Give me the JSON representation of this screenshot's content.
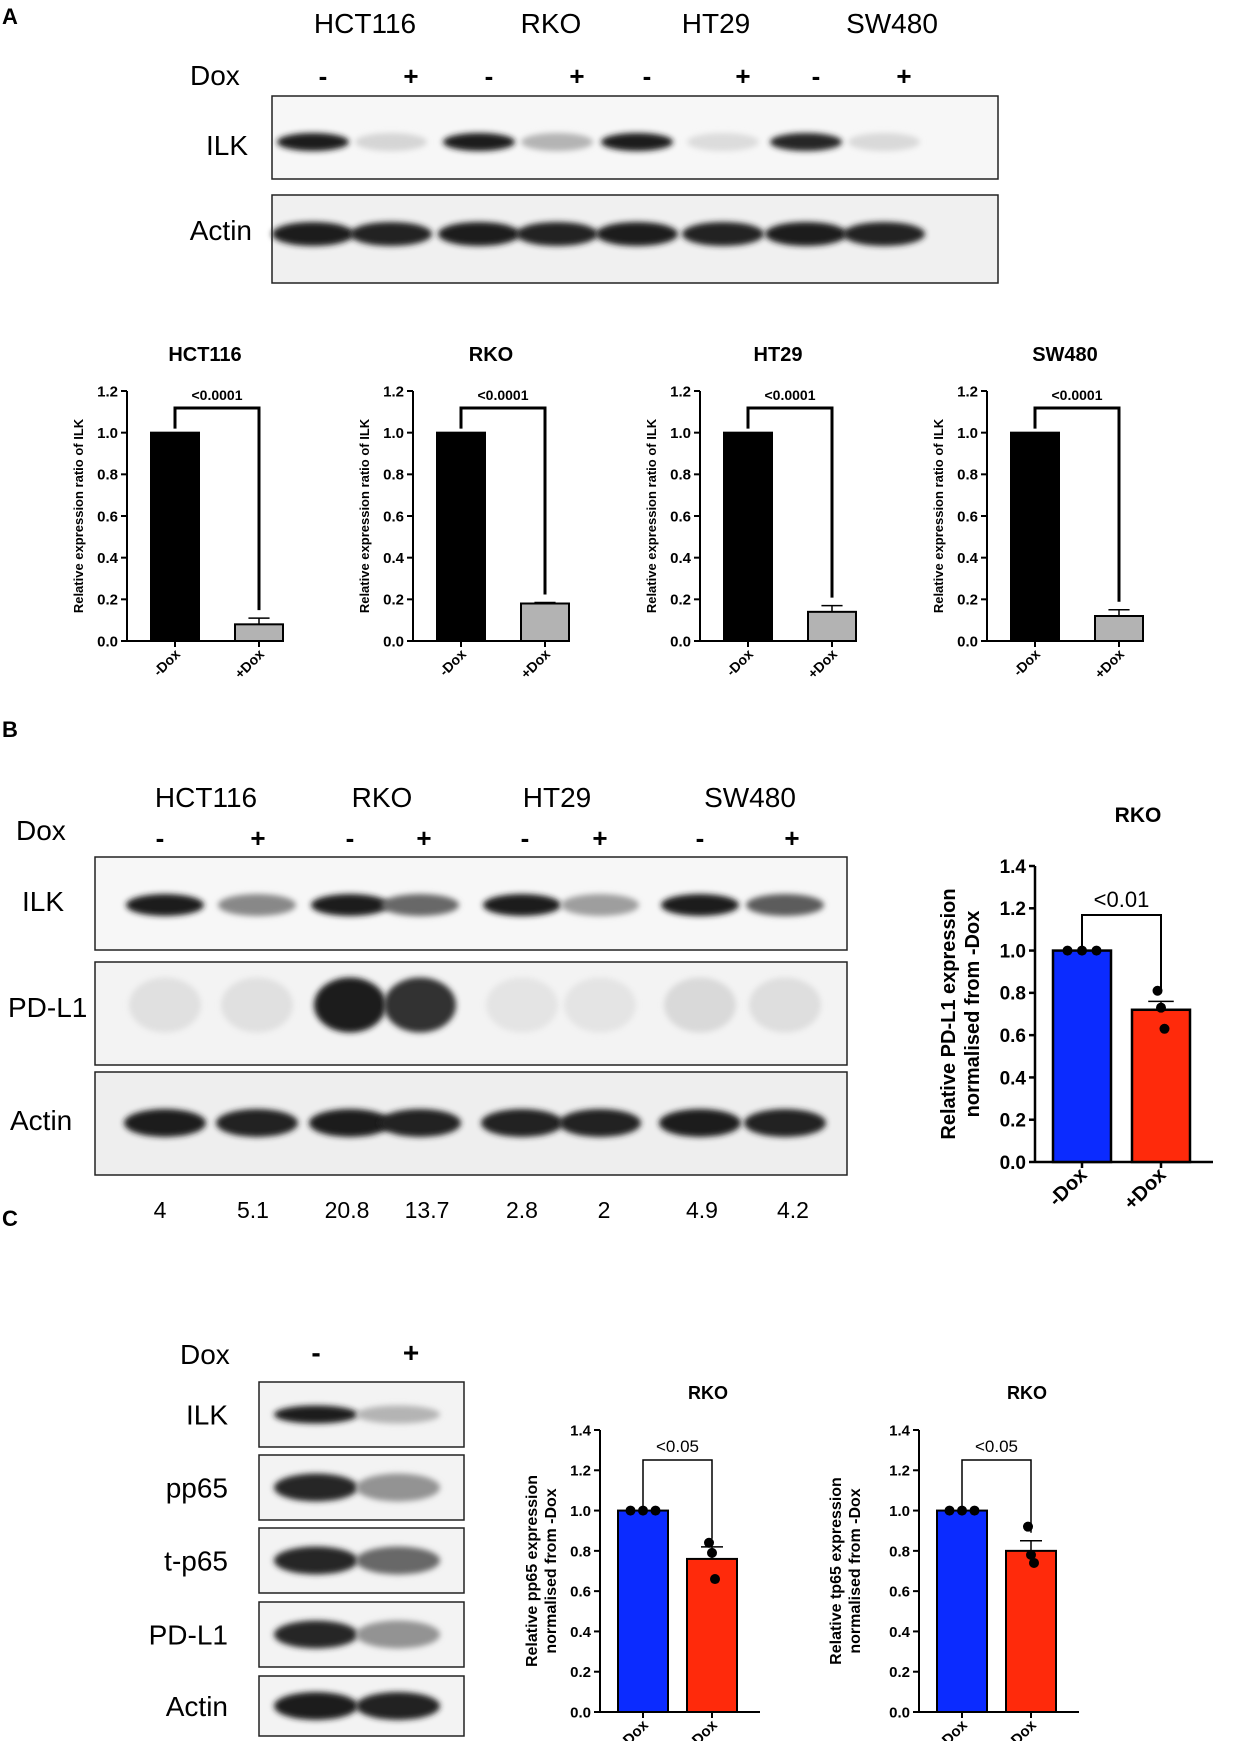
{
  "panels": {
    "a": {
      "letter": "A",
      "blot": {
        "dox_label": "Dox",
        "cell_lines": [
          "HCT116",
          "RKO",
          "HT29",
          "SW480"
        ],
        "treatments": [
          "-",
          "+",
          "-",
          "+",
          "-",
          "+",
          "-",
          "+"
        ],
        "rows": [
          "ILK",
          "Actin"
        ],
        "band_intensity": {
          "ILK": [
            0.95,
            0.1,
            0.95,
            0.25,
            0.95,
            0.07,
            0.9,
            0.08
          ],
          "Actin": [
            0.95,
            0.92,
            0.95,
            0.92,
            0.95,
            0.92,
            0.95,
            0.92
          ]
        }
      },
      "charts": [
        {
          "type": "bar",
          "title": "HCT116",
          "ylabel": "Relative expression ratio of ILK",
          "categories": [
            "-Dox",
            "+Dox"
          ],
          "values": [
            1.0,
            0.08
          ],
          "errors": [
            0,
            0.03
          ],
          "ylim": [
            0,
            1.2
          ],
          "yticks": [
            "0.0",
            "0.2",
            "0.4",
            "0.6",
            "0.8",
            "1.0",
            "1.2"
          ],
          "significance": "<0.0001",
          "colors": [
            "#000000",
            "#b3b3b3"
          ]
        },
        {
          "type": "bar",
          "title": "RKO",
          "ylabel": "Relative expression ratio of ILK",
          "categories": [
            "-Dox",
            "+Dox"
          ],
          "values": [
            1.0,
            0.18
          ],
          "errors": [
            0,
            0.005
          ],
          "ylim": [
            0,
            1.2
          ],
          "yticks": [
            "0.0",
            "0.2",
            "0.4",
            "0.6",
            "0.8",
            "1.0",
            "1.2"
          ],
          "significance": "<0.0001",
          "colors": [
            "#000000",
            "#b3b3b3"
          ]
        },
        {
          "type": "bar",
          "title": "HT29",
          "ylabel": "Relative expression ratio of ILK",
          "categories": [
            "-Dox",
            "+Dox"
          ],
          "values": [
            1.0,
            0.14
          ],
          "errors": [
            0,
            0.03
          ],
          "ylim": [
            0,
            1.2
          ],
          "yticks": [
            "0.0",
            "0.2",
            "0.4",
            "0.6",
            "0.8",
            "1.0",
            "1.2"
          ],
          "significance": "<0.0001",
          "colors": [
            "#000000",
            "#b3b3b3"
          ]
        },
        {
          "type": "bar",
          "title": "SW480",
          "ylabel": "Relative expression ratio of ILK",
          "categories": [
            "-Dox",
            "+Dox"
          ],
          "values": [
            1.0,
            0.12
          ],
          "errors": [
            0,
            0.03
          ],
          "ylim": [
            0,
            1.2
          ],
          "yticks": [
            "0.0",
            "0.2",
            "0.4",
            "0.6",
            "0.8",
            "1.0",
            "1.2"
          ],
          "significance": "<0.0001",
          "colors": [
            "#000000",
            "#b3b3b3"
          ]
        }
      ]
    },
    "b": {
      "letter": "B",
      "blot": {
        "dox_label": "Dox",
        "cell_lines": [
          "HCT116",
          "RKO",
          "HT29",
          "SW480"
        ],
        "treatments": [
          "-",
          "+",
          "-",
          "+",
          "-",
          "+",
          "-",
          "+"
        ],
        "rows": [
          "ILK",
          "PD-L1",
          "Actin"
        ],
        "band_intensity": {
          "ILK": [
            0.95,
            0.45,
            0.95,
            0.6,
            0.95,
            0.35,
            0.95,
            0.65
          ],
          "PD-L1": [
            0.05,
            0.05,
            0.95,
            0.85,
            0.03,
            0.03,
            0.08,
            0.06
          ],
          "Actin": [
            0.95,
            0.92,
            0.95,
            0.92,
            0.92,
            0.92,
            0.95,
            0.92
          ]
        },
        "quantification": [
          "4",
          "5.1",
          "20.8",
          "13.7",
          "2.8",
          "2",
          "4.9",
          "4.2"
        ]
      },
      "chart": {
        "type": "bar",
        "title": "RKO",
        "ylabel_line1": "Relative PD-L1 expression",
        "ylabel_line2": "normalised from -Dox",
        "categories": [
          "-Dox",
          "+Dox"
        ],
        "values": [
          1.0,
          0.72
        ],
        "errors": [
          0,
          0.04
        ],
        "points": [
          [
            1.0,
            1.0,
            1.0
          ],
          [
            0.81,
            0.73,
            0.63
          ]
        ],
        "ylim": [
          0,
          1.4
        ],
        "yticks": [
          "0.0",
          "0.2",
          "0.4",
          "0.6",
          "0.8",
          "1.0",
          "1.2",
          "1.4"
        ],
        "significance": "<0.01",
        "colors": [
          "#0b2bff",
          "#ff2a0b"
        ]
      }
    },
    "c": {
      "letter": "C",
      "blot": {
        "dox_label": "Dox",
        "treatments": [
          "-",
          "+"
        ],
        "rows": [
          "ILK",
          "pp65",
          "t-p65",
          "PD-L1",
          "Actin"
        ],
        "band_intensity": {
          "ILK": [
            0.95,
            0.25
          ],
          "pp65": [
            0.9,
            0.4
          ],
          "t-p65": [
            0.9,
            0.6
          ],
          "PD-L1": [
            0.9,
            0.4
          ],
          "Actin": [
            0.95,
            0.92
          ]
        }
      },
      "charts": [
        {
          "type": "bar",
          "title": "RKO",
          "ylabel_line1": "Relative pp65 expression",
          "ylabel_line2": "normalised from -Dox",
          "categories": [
            "-Dox",
            "+Dox"
          ],
          "values": [
            1.0,
            0.76
          ],
          "errors": [
            0,
            0.06
          ],
          "points": [
            [
              1.0,
              1.0,
              1.0
            ],
            [
              0.84,
              0.79,
              0.66
            ]
          ],
          "ylim": [
            0,
            1.4
          ],
          "yticks": [
            "0.0",
            "0.2",
            "0.4",
            "0.6",
            "0.8",
            "1.0",
            "1.2",
            "1.4"
          ],
          "significance": "<0.05",
          "colors": [
            "#0b2bff",
            "#ff2a0b"
          ]
        },
        {
          "type": "bar",
          "title": "RKO",
          "ylabel_line1": "Relative tp65 expression",
          "ylabel_line2": "normalised from -Dox",
          "categories": [
            "-Dox",
            "+Dox"
          ],
          "values": [
            1.0,
            0.8
          ],
          "errors": [
            0,
            0.05
          ],
          "points": [
            [
              1.0,
              1.0,
              1.0
            ],
            [
              0.92,
              0.78,
              0.74
            ]
          ],
          "ylim": [
            0,
            1.4
          ],
          "yticks": [
            "0.0",
            "0.2",
            "0.4",
            "0.6",
            "0.8",
            "1.0",
            "1.2",
            "1.4"
          ],
          "significance": "<0.05",
          "colors": [
            "#0b2bff",
            "#ff2a0b"
          ]
        }
      ]
    }
  }
}
